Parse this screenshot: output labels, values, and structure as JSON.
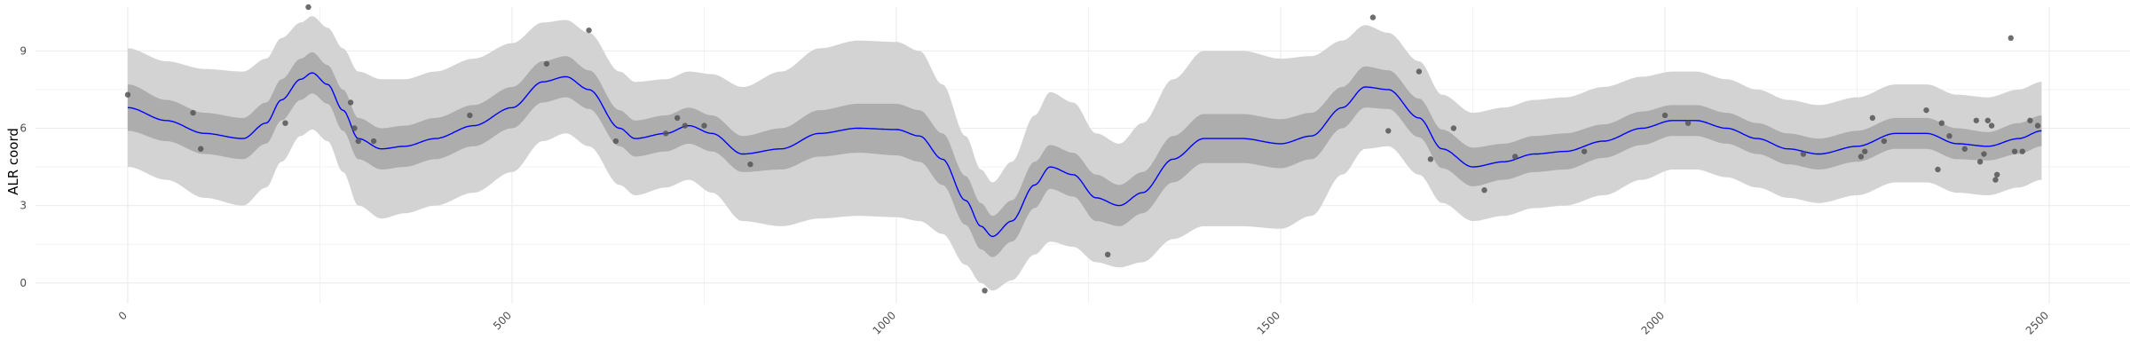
{
  "chart_data": {
    "type": "line",
    "title": "",
    "xlabel": "",
    "ylabel": "ALR coord",
    "xlim": [
      -120,
      2605
    ],
    "ylim": [
      -0.8,
      10.7
    ],
    "x_ticks": [
      0,
      500,
      1000,
      1500,
      2000,
      2500
    ],
    "y_ticks": [
      0,
      3,
      6,
      9
    ],
    "x_tick_labels": [
      "0",
      "500",
      "1000",
      "1500",
      "2000",
      "2500"
    ],
    "y_tick_labels": [
      "0",
      "3",
      "6",
      "9"
    ],
    "grid": true,
    "legend": "none",
    "colors": {
      "mean_line": "#0000ff",
      "inner_band": "#adadad",
      "outer_band": "#d3d3d3",
      "points": "#555555",
      "grid": "#ebebeb"
    },
    "series": [
      {
        "x": [
          0,
          50,
          100,
          150,
          180,
          200,
          225,
          240,
          260,
          280,
          300,
          330,
          360,
          400,
          450,
          500,
          540,
          570,
          600,
          640,
          660,
          700,
          730,
          760,
          800,
          850,
          900,
          950,
          1000,
          1030,
          1060,
          1090,
          1110,
          1125,
          1150,
          1180,
          1200,
          1230,
          1260,
          1290,
          1320,
          1360,
          1400,
          1450,
          1500,
          1540,
          1580,
          1610,
          1640,
          1680,
          1710,
          1750,
          1790,
          1830,
          1870,
          1920,
          1970,
          2010,
          2040,
          2080,
          2120,
          2160,
          2200,
          2250,
          2300,
          2340,
          2380,
          2420,
          2460,
          2490
        ],
        "mean": [
          6.8,
          6.3,
          5.8,
          5.6,
          6.2,
          7.1,
          7.9,
          8.15,
          7.7,
          6.7,
          5.6,
          5.2,
          5.3,
          5.6,
          6.1,
          6.8,
          7.8,
          8.0,
          7.5,
          6.0,
          5.6,
          5.8,
          6.1,
          5.8,
          5.0,
          5.2,
          5.8,
          6.0,
          5.95,
          5.7,
          4.8,
          3.2,
          2.2,
          1.8,
          2.4,
          3.8,
          4.5,
          4.2,
          3.3,
          3.0,
          3.5,
          4.8,
          5.6,
          5.6,
          5.4,
          5.7,
          6.8,
          7.6,
          7.5,
          6.4,
          5.2,
          4.5,
          4.7,
          5.0,
          5.1,
          5.5,
          6.0,
          6.3,
          6.3,
          6.0,
          5.6,
          5.2,
          5.0,
          5.3,
          5.8,
          5.8,
          5.4,
          5.3,
          5.6,
          5.9
        ],
        "inner_half_width": [
          0.9,
          0.8,
          0.8,
          0.8,
          0.8,
          0.8,
          0.8,
          0.8,
          0.75,
          0.8,
          0.8,
          0.8,
          0.8,
          0.8,
          0.8,
          0.8,
          0.8,
          0.8,
          0.75,
          0.7,
          0.7,
          0.7,
          0.7,
          0.7,
          0.7,
          0.8,
          0.9,
          0.95,
          1.0,
          1.0,
          1.0,
          0.95,
          0.9,
          0.8,
          0.8,
          0.9,
          0.85,
          0.85,
          0.9,
          0.8,
          0.8,
          0.9,
          0.95,
          0.95,
          0.95,
          0.9,
          0.8,
          0.8,
          0.75,
          0.75,
          0.75,
          0.75,
          0.7,
          0.7,
          0.7,
          0.65,
          0.65,
          0.6,
          0.6,
          0.6,
          0.6,
          0.6,
          0.6,
          0.6,
          0.6,
          0.6,
          0.6,
          0.55,
          0.6,
          0.6
        ],
        "outer_half_width": [
          2.3,
          2.3,
          2.5,
          2.6,
          2.5,
          2.4,
          2.2,
          2.2,
          2.2,
          2.4,
          2.6,
          2.7,
          2.6,
          2.6,
          2.6,
          2.5,
          2.3,
          2.2,
          2.2,
          2.2,
          2.2,
          2.1,
          2.1,
          2.3,
          2.6,
          3.0,
          3.3,
          3.4,
          3.4,
          3.3,
          2.9,
          2.5,
          2.2,
          2.1,
          2.3,
          2.7,
          2.9,
          2.8,
          2.5,
          2.4,
          2.7,
          3.1,
          3.4,
          3.4,
          3.3,
          3.1,
          2.6,
          2.4,
          2.2,
          2.2,
          2.1,
          2.1,
          2.1,
          2.1,
          2.1,
          2.1,
          2.0,
          1.9,
          1.9,
          1.9,
          1.9,
          1.9,
          1.9,
          1.9,
          1.9,
          1.9,
          1.9,
          1.9,
          1.9,
          1.9
        ]
      }
    ],
    "points": [
      [
        0,
        7.3
      ],
      [
        85,
        6.6
      ],
      [
        95,
        5.2
      ],
      [
        205,
        6.2
      ],
      [
        235,
        10.7
      ],
      [
        290,
        7.0
      ],
      [
        295,
        6.0
      ],
      [
        300,
        5.5
      ],
      [
        320,
        5.5
      ],
      [
        445,
        6.5
      ],
      [
        545,
        8.5
      ],
      [
        600,
        9.8
      ],
      [
        635,
        5.5
      ],
      [
        700,
        5.8
      ],
      [
        715,
        6.4
      ],
      [
        725,
        6.1
      ],
      [
        750,
        6.1
      ],
      [
        810,
        4.6
      ],
      [
        1115,
        -0.3
      ],
      [
        1275,
        1.1
      ],
      [
        1620,
        10.3
      ],
      [
        1640,
        5.9
      ],
      [
        1680,
        8.2
      ],
      [
        1695,
        4.8
      ],
      [
        1725,
        6.0
      ],
      [
        1765,
        3.6
      ],
      [
        1805,
        4.9
      ],
      [
        1895,
        5.1
      ],
      [
        2000,
        6.5
      ],
      [
        2030,
        6.2
      ],
      [
        2180,
        5.0
      ],
      [
        2255,
        4.9
      ],
      [
        2260,
        5.1
      ],
      [
        2270,
        6.4
      ],
      [
        2285,
        5.5
      ],
      [
        2340,
        6.7
      ],
      [
        2355,
        4.4
      ],
      [
        2360,
        6.2
      ],
      [
        2370,
        5.7
      ],
      [
        2390,
        5.2
      ],
      [
        2405,
        6.3
      ],
      [
        2410,
        4.7
      ],
      [
        2415,
        5.0
      ],
      [
        2420,
        6.3
      ],
      [
        2425,
        6.1
      ],
      [
        2430,
        4.0
      ],
      [
        2432,
        4.2
      ],
      [
        2450,
        9.5
      ],
      [
        2455,
        5.1
      ],
      [
        2465,
        5.1
      ],
      [
        2475,
        6.3
      ],
      [
        2485,
        6.1
      ]
    ]
  }
}
